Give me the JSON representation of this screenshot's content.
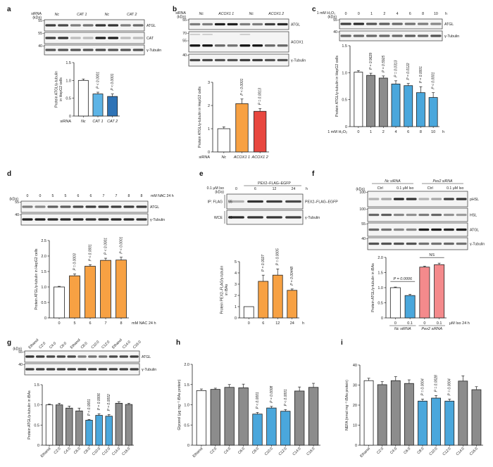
{
  "colors": {
    "white": "#ffffff",
    "grey": "#8c8c8c",
    "light_blue": "#5db4e6",
    "dark_blue": "#2f73b6",
    "blue": "#4aa7dc",
    "orange": "#f7a143",
    "red": "#e8473f",
    "pink": "#f48a8c",
    "outline": "#222222"
  },
  "kda_label": "(kDa)",
  "blots": {
    "a": {
      "header": "siRNA",
      "lanes": 8,
      "lane_labels": [
        "Nc",
        "CAT 1",
        "Nc",
        "CAT 2"
      ],
      "rows": [
        {
          "name": "ATGL",
          "kda": [
            "55"
          ],
          "intensity": [
            0.8,
            0.75,
            0.5,
            0.55,
            0.85,
            0.85,
            0.5,
            0.6
          ]
        },
        {
          "name": "CAT",
          "kda": [
            "55"
          ],
          "intensity": [
            0.8,
            0.85,
            0.2,
            0.2,
            0.95,
            0.95,
            0.2,
            0.2
          ]
        },
        {
          "name": "γ-Tubulin",
          "kda": [
            "40"
          ],
          "intensity": [
            0.7,
            0.7,
            0.7,
            0.7,
            0.75,
            0.7,
            0.7,
            0.7
          ]
        }
      ]
    },
    "b": {
      "header": "siRNA",
      "lanes": 8,
      "lane_labels": [
        "Nc",
        "ACOX1 1",
        "Nc",
        "ACOX1 2"
      ],
      "rows": [
        {
          "name": "ATGL",
          "kda": [
            "55"
          ],
          "intensity": [
            0.5,
            0.5,
            0.95,
            0.95,
            0.5,
            0.5,
            0.8,
            0.9
          ]
        },
        {
          "name": "ACOX1",
          "kda": [
            "70",
            "55"
          ],
          "intensity": [
            1,
            1,
            0.6,
            0.55,
            1,
            1,
            0.6,
            0.6
          ]
        },
        {
          "name": "γ-Tubulin",
          "kda": [
            "40"
          ],
          "intensity": [
            0.75,
            0.75,
            0.7,
            0.7,
            0.8,
            0.8,
            0.7,
            0.7
          ]
        }
      ]
    },
    "c": {
      "header": "1 mM H₂O₂",
      "suffix": "h",
      "lanes": 8,
      "lane_labels": [
        "0",
        "0",
        "1",
        "2",
        "4",
        "6",
        "8",
        "10"
      ],
      "rows": [
        {
          "name": "ATGL",
          "kda": [
            "55"
          ],
          "intensity": [
            0.8,
            0.9,
            0.7,
            0.65,
            0.6,
            0.55,
            0.5,
            0.45
          ]
        },
        {
          "name": "γ-Tubulin",
          "kda": [
            "40"
          ],
          "intensity": [
            0.6,
            0.6,
            0.6,
            0.6,
            0.6,
            0.65,
            0.6,
            0.7
          ]
        }
      ]
    },
    "d": {
      "header": "",
      "suffix": "mM NAC 24 h",
      "lanes": 10,
      "lane_labels": [
        "0",
        "0",
        "5",
        "5",
        "6",
        "6",
        "7",
        "7",
        "8",
        "8"
      ],
      "rows": [
        {
          "name": "ATGL",
          "kda": [
            "55"
          ],
          "intensity": [
            0.5,
            0.45,
            0.65,
            0.65,
            0.75,
            0.8,
            0.8,
            0.8,
            0.8,
            0.8
          ]
        },
        {
          "name": "γ-Tubulin",
          "kda": [
            "40"
          ],
          "intensity": [
            0.95,
            0.95,
            0.9,
            0.9,
            0.9,
            0.85,
            0.85,
            0.9,
            0.9,
            0.85
          ]
        }
      ]
    },
    "e": {
      "header": "0.1 μM Iso",
      "suffix": "h",
      "group": "PEX2–FLAG–EGFP",
      "lanes": 4,
      "lane_labels": [
        "0",
        "6",
        "12",
        "24"
      ],
      "left_labels": [
        "IP: FLAG",
        "WCE"
      ],
      "rows": [
        {
          "name": "PEX2–FLAG–EGFP",
          "kda": [
            "55"
          ],
          "intensity": [
            0.25,
            0.85,
            0.8,
            0.75
          ]
        },
        {
          "name": "γ-Tubulin",
          "kda": [
            "40"
          ],
          "intensity": [
            0.9,
            0.85,
            0.85,
            0.8
          ]
        }
      ]
    },
    "f": {
      "header": "",
      "lanes": 8,
      "groups": [
        "Nc siRNA",
        "Pex2 siRNA"
      ],
      "lane_labels": [
        "Ctrl",
        "0.1 μM Iso",
        "Ctrl",
        "0.1 μM Iso"
      ],
      "rows": [
        {
          "name": "pHSL",
          "kda": [
            "100"
          ],
          "intensity": [
            0.25,
            0.3,
            0.9,
            0.85,
            0.25,
            0.3,
            0.8,
            0.85
          ]
        },
        {
          "name": "HSL",
          "kda": [
            "100"
          ],
          "intensity": [
            0.6,
            0.65,
            0.45,
            0.4,
            0.5,
            0.6,
            0.4,
            0.35
          ]
        },
        {
          "name": "ATGL",
          "kda": [
            "55"
          ],
          "intensity": [
            0.6,
            0.55,
            0.45,
            0.45,
            0.95,
            0.95,
            0.9,
            0.95
          ]
        },
        {
          "name": "γ-Tubulin",
          "kda": [
            "40"
          ],
          "intensity": [
            0.7,
            0.7,
            0.7,
            0.7,
            0.55,
            0.55,
            0.6,
            0.55
          ]
        }
      ]
    },
    "g": {
      "header": "",
      "lanes": 11,
      "rotated": true,
      "lane_labels": [
        "Ethanol",
        "C2:0",
        "C4:0",
        "C6:0",
        "Ethanol",
        "C8:0",
        "C10:0",
        "C12:0",
        "Ethanol",
        "C14:0",
        "C16:0"
      ],
      "rows": [
        {
          "name": "ATGL",
          "kda": [
            "55"
          ],
          "intensity": [
            0.85,
            0.8,
            0.75,
            0.75,
            0.75,
            0.5,
            0.55,
            0.55,
            0.75,
            0.75,
            0.8
          ]
        },
        {
          "name": "γ-Tubulin",
          "kda": [
            "40"
          ],
          "intensity": [
            0.8,
            0.8,
            0.8,
            0.8,
            0.8,
            0.8,
            0.8,
            0.8,
            0.8,
            0.8,
            0.8
          ]
        }
      ]
    }
  },
  "chart_data": [
    {
      "panel": "a",
      "type": "bar",
      "ylabel": [
        "Protein ATGL/γ-tubulin",
        "in HepG2 cells"
      ],
      "xprefix": "siRNA",
      "categories": [
        "Nc",
        "CAT 1",
        "CAT 2"
      ],
      "values": [
        1.0,
        0.62,
        0.55
      ],
      "errors": [
        0.04,
        0.05,
        0.07
      ],
      "p_values": [
        "",
        "P < 0.0001",
        "P < 0.0001"
      ],
      "bar_colors": [
        "white",
        "light_blue",
        "dark_blue"
      ],
      "ylim": [
        0,
        1.5
      ],
      "yticks": [
        "0",
        "0.5",
        "1.0",
        "1.5"
      ]
    },
    {
      "panel": "b",
      "type": "bar",
      "ylabel": [
        "Protein ATGL/γ-tubulin in HepG2 cells"
      ],
      "xprefix": "siRNA",
      "categories": [
        "Nc",
        "ACOX1 1",
        "ACOX1 2"
      ],
      "values": [
        1.0,
        2.08,
        1.75
      ],
      "errors": [
        0.08,
        0.2,
        0.12
      ],
      "p_values": [
        "",
        "P < 0.0001",
        "P = 0.0013"
      ],
      "bar_colors": [
        "white",
        "orange",
        "red"
      ],
      "ylim": [
        0,
        3
      ],
      "yticks": [
        "0",
        "1",
        "2",
        "3"
      ]
    },
    {
      "panel": "c",
      "type": "bar",
      "ylabel": [
        "Protein ATGL/γ-tubulin in HepG2 cells"
      ],
      "xprefix": "1 mM H₂O₂",
      "xsuffix": "h",
      "categories": [
        "0",
        "1",
        "2",
        "4",
        "6",
        "8",
        "10"
      ],
      "values": [
        1.01,
        0.95,
        0.9,
        0.79,
        0.76,
        0.63,
        0.54
      ],
      "errors": [
        0.03,
        0.04,
        0.04,
        0.06,
        0.04,
        0.11,
        0.09
      ],
      "p_values": [
        "",
        "P = 0.9629",
        "P = 0.5925",
        "P = 0.0313",
        "P = 0.0122",
        "P = 0.0001",
        "P < 0.0001"
      ],
      "bar_colors": [
        "white",
        "grey",
        "grey",
        "blue",
        "blue",
        "blue",
        "blue"
      ],
      "ylim": [
        0,
        1.5
      ],
      "yticks": [
        "0",
        "0.5",
        "1.0",
        "1.5"
      ]
    },
    {
      "panel": "d",
      "type": "bar",
      "ylabel": [
        "Protein ATGL/γ-tubulin in HepG2 cells"
      ],
      "xsuffix": "mM NAC 24 h",
      "categories": [
        "0",
        "5",
        "6",
        "7",
        "8"
      ],
      "values": [
        1.0,
        1.36,
        1.67,
        1.86,
        1.87
      ],
      "errors": [
        0.02,
        0.06,
        0.05,
        0.07,
        0.09
      ],
      "p_values": [
        "",
        "P = 0.0003",
        "P < 0.0001",
        "P < 0.0001",
        "P < 0.0001"
      ],
      "bar_colors": [
        "white",
        "orange",
        "orange",
        "orange",
        "orange"
      ],
      "ylim": [
        0,
        2.5
      ],
      "yticks": [
        "0",
        "0.5",
        "1.0",
        "1.5",
        "2.0",
        "2.5"
      ]
    },
    {
      "panel": "e",
      "type": "bar",
      "ylabel": [
        "Protein PEX2–FLAG/γ-tubulin",
        "in iBAs"
      ],
      "xsuffix": "h",
      "categories": [
        "0",
        "6",
        "12",
        "24"
      ],
      "values": [
        1.0,
        3.25,
        3.8,
        2.45
      ],
      "errors": [
        0,
        0.55,
        0.55,
        0.12
      ],
      "p_values": [
        "",
        "P = 0.0027",
        "P = 0.0005",
        "P = 0.00448"
      ],
      "bar_colors": [
        "white",
        "orange",
        "orange",
        "orange"
      ],
      "ylim": [
        0,
        5
      ],
      "yticks": [
        "0",
        "1",
        "2",
        "3",
        "4",
        "5"
      ]
    },
    {
      "panel": "f",
      "type": "bar",
      "ylabel": [
        "Protein ATGL/γ-tubulin in iBAs"
      ],
      "xsuffix": "μM Iso 24 h",
      "categories": [
        "0",
        "0.1",
        "0",
        "0.1"
      ],
      "groups": [
        "Nc siRNA",
        "Pex2 siRNA"
      ],
      "values": [
        1.0,
        0.74,
        1.68,
        1.76
      ],
      "errors": [
        0.02,
        0.04,
        0.03,
        0.05
      ],
      "p_values": [
        "",
        "",
        "",
        ""
      ],
      "brackets": [
        {
          "from": 0,
          "to": 1,
          "label": "P = 0.0006"
        },
        {
          "from": 2,
          "to": 3,
          "label": "NS"
        }
      ],
      "bar_colors": [
        "white",
        "blue",
        "pink",
        "pink"
      ],
      "ylim": [
        0,
        2.0
      ],
      "yticks": [
        "0",
        "0.5",
        "1.0",
        "1.5",
        "2.0"
      ]
    },
    {
      "panel": "g",
      "type": "bar",
      "ylabel": [
        "Protein ATGL/γ-tubulin in iBAs"
      ],
      "rotated": true,
      "categories": [
        "Ethanol",
        "C2:0",
        "C4:0",
        "C6:0",
        "C8:0",
        "C10:0",
        "C12:0",
        "C14:0",
        "C16:0"
      ],
      "values": [
        1.0,
        1.0,
        0.92,
        0.85,
        0.62,
        0.74,
        0.72,
        1.04,
        1.01
      ],
      "errors": [
        0.02,
        0.04,
        0.05,
        0.07,
        0.02,
        0.04,
        0.04,
        0.04,
        0.03
      ],
      "p_values": [
        "",
        "",
        "",
        "",
        "P < 0.0001",
        "P = 0.0006",
        "P = 0.0002",
        "",
        ""
      ],
      "bar_colors": [
        "white",
        "grey",
        "grey",
        "grey",
        "blue",
        "blue",
        "blue",
        "grey",
        "grey"
      ],
      "ylim": [
        0,
        1.5
      ],
      "yticks": [
        "0",
        "0.5",
        "1.0",
        "1.5"
      ]
    },
    {
      "panel": "h",
      "type": "bar",
      "ylabel": [
        "Glycerol (μg mg⁻¹ iBAs protein)"
      ],
      "rotated": true,
      "categories": [
        "Ethanol",
        "C2:0",
        "C4:0",
        "C6:0",
        "C8:0",
        "C10:0",
        "C12:0",
        "C14:0",
        "C16:0"
      ],
      "values": [
        1.35,
        1.38,
        1.43,
        1.42,
        0.77,
        0.92,
        0.84,
        1.34,
        1.43
      ],
      "errors": [
        0.04,
        0.03,
        0.07,
        0.09,
        0.04,
        0.04,
        0.04,
        0.1,
        0.1
      ],
      "p_values": [
        "",
        "",
        "",
        "",
        "P < 0.0001",
        "P = 0.0008",
        "P < 0.0001",
        "",
        ""
      ],
      "bar_colors": [
        "white",
        "grey",
        "grey",
        "grey",
        "blue",
        "blue",
        "blue",
        "grey",
        "grey"
      ],
      "ylim": [
        0,
        2.0
      ],
      "yticks": [
        "0",
        "0.5",
        "1.0",
        "1.5",
        "2.0"
      ]
    },
    {
      "panel": "i",
      "type": "bar",
      "ylabel": [
        "NEFA (nmol mg⁻¹ iBAs protein)"
      ],
      "rotated": true,
      "categories": [
        "Ethanol",
        "C2:0",
        "C4:0",
        "C6:0",
        "C8:0",
        "C10:0",
        "C12:0",
        "C14:0",
        "C16:0"
      ],
      "values": [
        32.2,
        30.2,
        32.2,
        30.8,
        22.0,
        23.5,
        22.0,
        32.0,
        27.7
      ],
      "errors": [
        1.2,
        1.5,
        2.0,
        1.8,
        1.0,
        1.3,
        1.0,
        2.6,
        1.5
      ],
      "p_values": [
        "",
        "",
        "",
        "",
        "P = 0.0004",
        "P = 0.0028",
        "P = 0.0004",
        "",
        ""
      ],
      "bar_colors": [
        "white",
        "grey",
        "grey",
        "grey",
        "blue",
        "blue",
        "blue",
        "grey",
        "grey"
      ],
      "ylim": [
        0,
        40
      ],
      "yticks": [
        "0",
        "10",
        "20",
        "30",
        "40"
      ]
    }
  ]
}
